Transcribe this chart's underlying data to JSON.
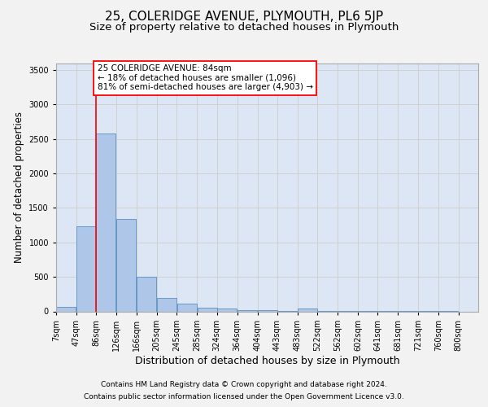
{
  "title": "25, COLERIDGE AVENUE, PLYMOUTH, PL6 5JP",
  "subtitle": "Size of property relative to detached houses in Plymouth",
  "xlabel": "Distribution of detached houses by size in Plymouth",
  "ylabel": "Number of detached properties",
  "footer_line1": "Contains HM Land Registry data © Crown copyright and database right 2024.",
  "footer_line2": "Contains public sector information licensed under the Open Government Licence v3.0.",
  "annotation_line1": "25 COLERIDGE AVENUE: 84sqm",
  "annotation_line2": "← 18% of detached houses are smaller (1,096)",
  "annotation_line3": "81% of semi-detached houses are larger (4,903) →",
  "bar_left_edges": [
    7,
    47,
    86,
    126,
    166,
    205,
    245,
    285,
    324,
    364,
    404,
    443,
    483,
    522,
    562,
    602,
    641,
    681,
    721,
    760
  ],
  "bar_widths": [
    39,
    39,
    39,
    39,
    39,
    39,
    39,
    39,
    39,
    39,
    39,
    39,
    39,
    39,
    39,
    39,
    39,
    39,
    39,
    39
  ],
  "bar_heights": [
    60,
    1230,
    2580,
    1340,
    500,
    200,
    110,
    50,
    45,
    20,
    15,
    10,
    40,
    5,
    5,
    5,
    5,
    5,
    5,
    5
  ],
  "tick_labels": [
    "7sqm",
    "47sqm",
    "86sqm",
    "126sqm",
    "166sqm",
    "205sqm",
    "245sqm",
    "285sqm",
    "324sqm",
    "364sqm",
    "404sqm",
    "443sqm",
    "483sqm",
    "522sqm",
    "562sqm",
    "602sqm",
    "641sqm",
    "681sqm",
    "721sqm",
    "760sqm",
    "800sqm"
  ],
  "bar_color": "#aec6e8",
  "bar_edge_color": "#5a8fc0",
  "red_line_x": 86,
  "ylim": [
    0,
    3600
  ],
  "yticks": [
    0,
    500,
    1000,
    1500,
    2000,
    2500,
    3000,
    3500
  ],
  "grid_color": "#cccccc",
  "fig_bg_color": "#f2f2f2",
  "plot_bg_color": "#dce6f5",
  "title_fontsize": 11,
  "subtitle_fontsize": 9.5,
  "axis_label_fontsize": 8.5,
  "tick_fontsize": 7,
  "annotation_fontsize": 7.5,
  "footer_fontsize": 6.5
}
